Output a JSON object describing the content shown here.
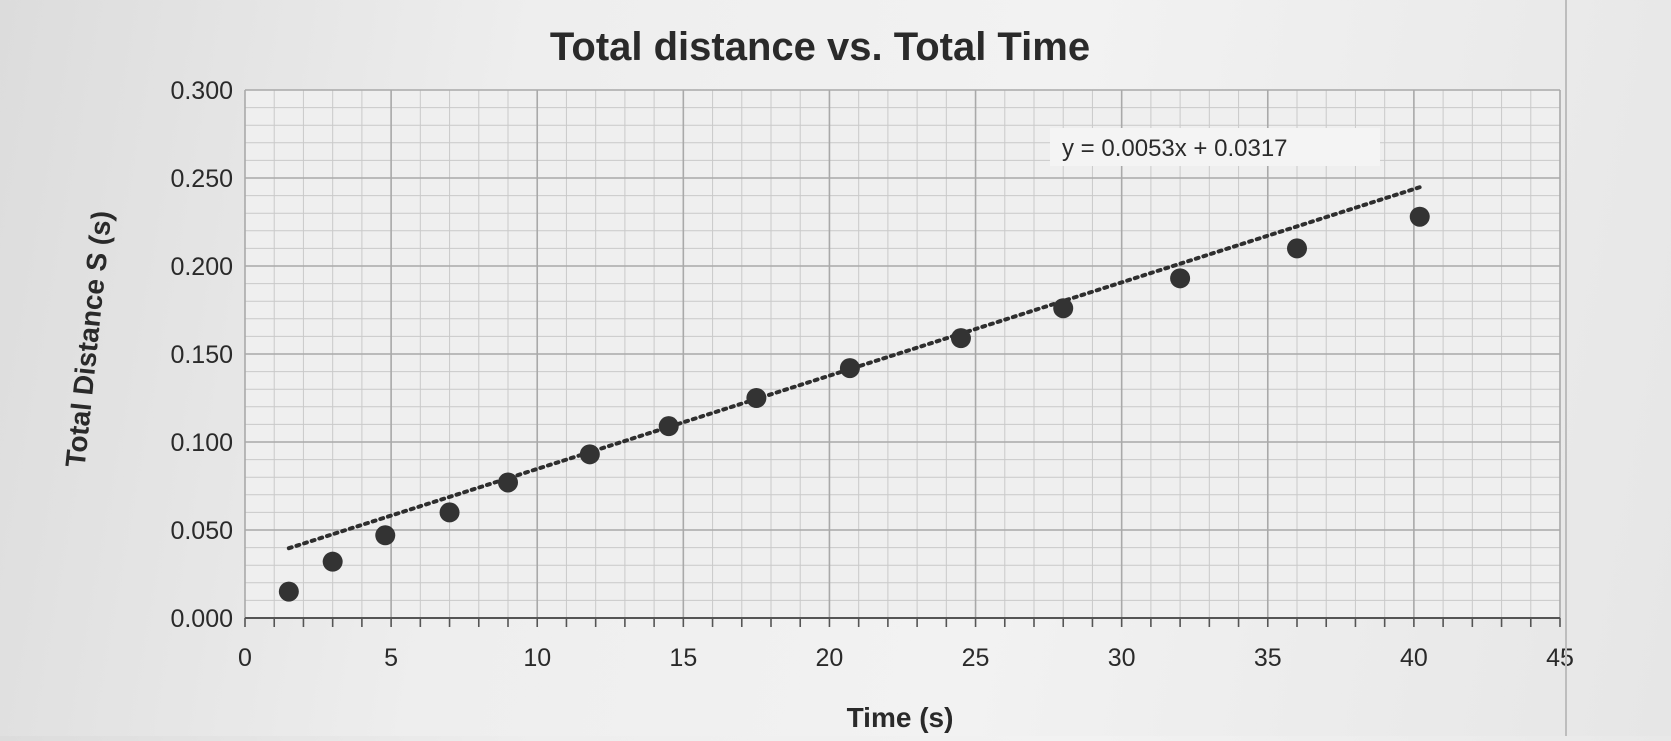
{
  "chart_data": {
    "type": "scatter",
    "title": "Total distance vs. Total  Time",
    "xlabel": "Time (s)",
    "ylabel": "Total Distance S (s)",
    "xlim": [
      0,
      45
    ],
    "ylim": [
      0,
      0.3
    ],
    "x_ticks": [
      "0",
      "5",
      "10",
      "15",
      "20",
      "25",
      "30",
      "35",
      "40",
      "45"
    ],
    "y_ticks": [
      "0.000",
      "0.050",
      "0.100",
      "0.150",
      "0.200",
      "0.250",
      "0.300"
    ],
    "grid": true,
    "series": [
      {
        "x": [
          1.5,
          3.0,
          4.8,
          7.0,
          9.0,
          11.8,
          14.5,
          17.5,
          20.7,
          24.5,
          28.0,
          32.0,
          36.0,
          40.2
        ],
        "y": [
          0.015,
          0.032,
          0.047,
          0.06,
          0.077,
          0.093,
          0.109,
          0.125,
          0.142,
          0.159,
          0.176,
          0.193,
          0.21,
          0.228
        ]
      }
    ],
    "trendline": {
      "type": "linear",
      "slope": 0.0053,
      "intercept": 0.0317,
      "x_range": [
        1.5,
        40.2
      ],
      "style": "dotted",
      "equation": "y = 0.0053x + 0.0317"
    }
  }
}
